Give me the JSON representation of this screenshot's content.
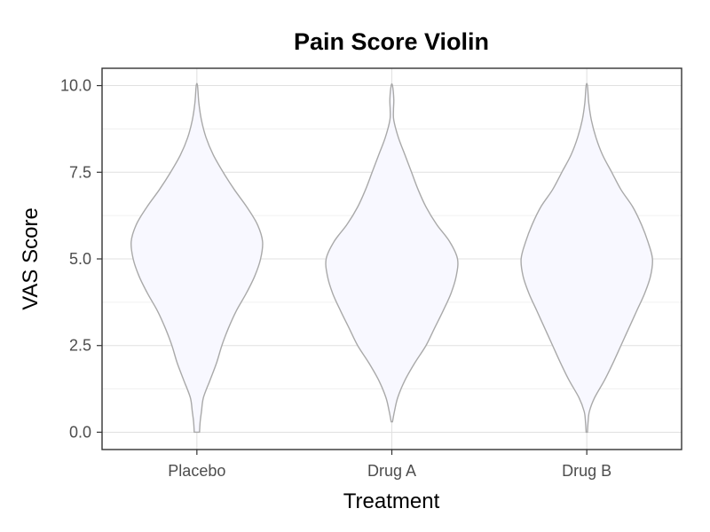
{
  "chart_data": {
    "type": "violin",
    "title": "Pain Score Violin",
    "xlabel": "Treatment",
    "ylabel": "VAS Score",
    "categories": [
      "Placebo",
      "Drug A",
      "Drug B"
    ],
    "ylim": [
      -0.5,
      10.5
    ],
    "yticks": [
      0,
      2.5,
      5,
      7.5,
      10
    ],
    "ytick_labels": [
      "0.0",
      "2.5",
      "5.0",
      "7.5",
      "10.0"
    ],
    "grid": true,
    "fill_color": "#f8f8ff",
    "outline_color": "#a9a9a9",
    "density_profiles": [
      {
        "name": "Placebo",
        "y": [
          0,
          0.3,
          0.6,
          1.0,
          1.5,
          2.0,
          2.5,
          3.0,
          3.5,
          4.0,
          4.5,
          5.0,
          5.5,
          6.0,
          6.5,
          7.0,
          7.5,
          8.0,
          8.5,
          9.0,
          9.5,
          10.0
        ],
        "halfwidth": [
          0.04,
          0.05,
          0.07,
          0.1,
          0.2,
          0.3,
          0.38,
          0.48,
          0.6,
          0.75,
          0.88,
          0.97,
          1.0,
          0.92,
          0.76,
          0.57,
          0.4,
          0.25,
          0.14,
          0.07,
          0.03,
          0.01
        ]
      },
      {
        "name": "Drug A",
        "y": [
          0.3,
          0.6,
          1.0,
          1.5,
          2.0,
          2.5,
          3.0,
          3.5,
          4.0,
          4.5,
          5.0,
          5.5,
          6.0,
          6.5,
          7.0,
          7.5,
          8.0,
          8.5,
          9.0,
          9.3,
          9.6,
          10.0
        ],
        "halfwidth": [
          0.01,
          0.04,
          0.09,
          0.2,
          0.35,
          0.52,
          0.65,
          0.78,
          0.9,
          0.98,
          1.0,
          0.88,
          0.68,
          0.52,
          0.4,
          0.3,
          0.2,
          0.1,
          0.03,
          0.025,
          0.03,
          0.01
        ]
      },
      {
        "name": "Drug B",
        "y": [
          0,
          0.3,
          0.6,
          1.0,
          1.5,
          2.0,
          2.5,
          3.0,
          3.5,
          4.0,
          4.5,
          5.0,
          5.5,
          6.0,
          6.5,
          7.0,
          7.5,
          8.0,
          8.5,
          9.0,
          9.5,
          10.0
        ],
        "halfwidth": [
          0.01,
          0.02,
          0.04,
          0.12,
          0.27,
          0.4,
          0.52,
          0.64,
          0.76,
          0.88,
          0.97,
          1.0,
          0.93,
          0.83,
          0.7,
          0.52,
          0.38,
          0.24,
          0.14,
          0.07,
          0.03,
          0.01
        ]
      }
    ]
  }
}
